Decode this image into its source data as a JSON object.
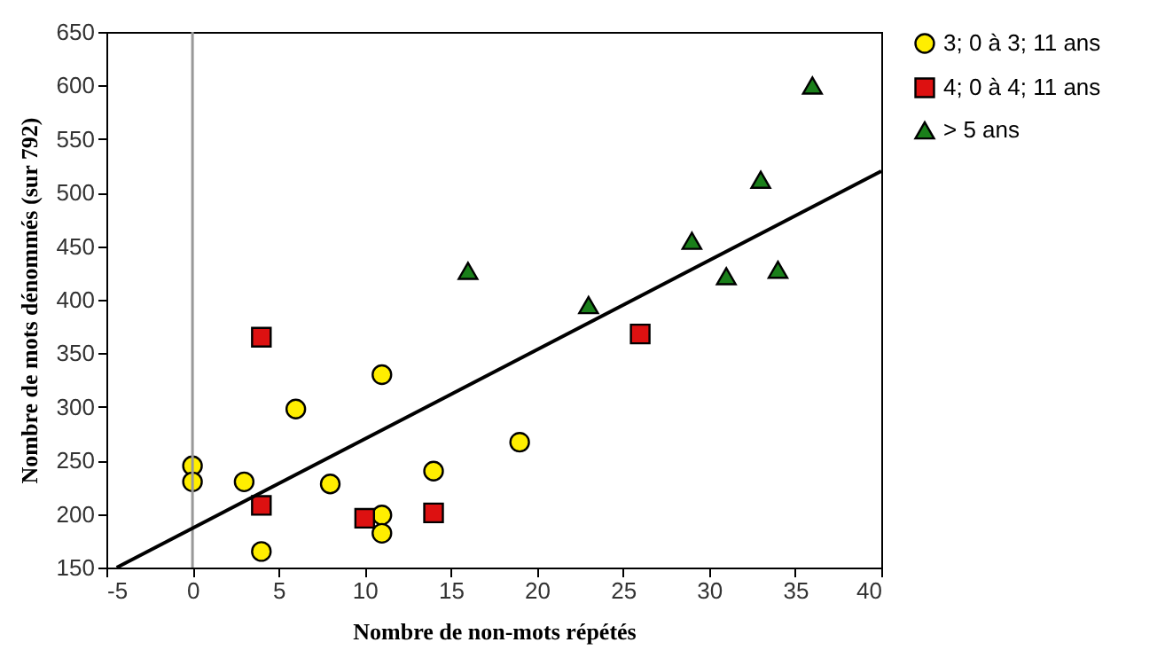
{
  "chart_data": {
    "type": "scatter",
    "xlabel": "Nombre de non-mots répétés",
    "ylabel": "Nombre de mots dénommés (sur 792)",
    "xlim": [
      -5,
      40
    ],
    "ylim": [
      150,
      650
    ],
    "xticks": [
      -5,
      0,
      5,
      10,
      15,
      20,
      25,
      30,
      35,
      40
    ],
    "yticks": [
      150,
      200,
      250,
      300,
      350,
      400,
      450,
      500,
      550,
      600,
      650
    ],
    "grid": false,
    "legend": "right",
    "ref_lines": [
      {
        "axis": "x",
        "value": 0,
        "color": "#999999"
      }
    ],
    "series": [
      {
        "name": "3; 0 à 3; 11 ans",
        "color": "#ffee00",
        "marker": "circle",
        "x": [
          0,
          0,
          3,
          4,
          6,
          8,
          11,
          11,
          11,
          14,
          19
        ],
        "values": [
          245,
          230,
          230,
          165,
          298,
          228,
          330,
          199,
          182,
          240,
          267
        ]
      },
      {
        "name": "4; 0 à 4; 11 ans",
        "color": "#dd1111",
        "marker": "square",
        "x": [
          4,
          4,
          10,
          14,
          26
        ],
        "values": [
          365,
          208,
          196,
          201,
          368
        ]
      },
      {
        "name": "> 5 ans",
        "color": "#1a7f1a",
        "marker": "triangle",
        "x": [
          16,
          23,
          29,
          31,
          33,
          34,
          36
        ],
        "values": [
          427,
          395,
          455,
          422,
          512,
          428,
          600
        ]
      },
      {
        "type": "line",
        "color": "#000000",
        "x": [
          -4.4,
          40
        ],
        "values": [
          150,
          520
        ]
      }
    ]
  }
}
